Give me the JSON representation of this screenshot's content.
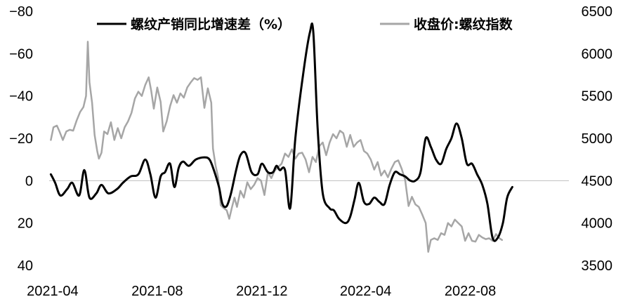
{
  "chart_data": {
    "type": "line",
    "title": "",
    "xlabel": "",
    "grid": false,
    "legend_position": "top",
    "x_tick_labels": [
      "2021-04",
      "2021-08",
      "2021-12",
      "2022-04",
      "2022-08"
    ],
    "x_range": [
      "2021-03-28",
      "2022-11-24"
    ],
    "y_left": {
      "label": "",
      "reversed": true,
      "ylim": [
        -80,
        40
      ],
      "ticks": [
        -80,
        -60,
        -40,
        -20,
        0,
        20,
        40
      ],
      "tick_labels": [
        "−80",
        "−60",
        "−40",
        "−20",
        "0",
        "20",
        "40"
      ]
    },
    "y_right": {
      "label": "",
      "ylim": [
        3500,
        6500
      ],
      "ticks": [
        3500,
        4000,
        4500,
        5000,
        5500,
        6000,
        6500
      ],
      "tick_labels": [
        "3500",
        "4000",
        "4500",
        "5000",
        "5500",
        "6000",
        "6500"
      ]
    },
    "series": [
      {
        "name": "螺纹产销同比增速差（%）",
        "axis": "left",
        "color": "#000000",
        "points": [
          [
            "2021-03-30",
            -3
          ],
          [
            "2021-04-04",
            1
          ],
          [
            "2021-04-10",
            7
          ],
          [
            "2021-04-18",
            4
          ],
          [
            "2021-04-24",
            1
          ],
          [
            "2021-05-02",
            7
          ],
          [
            "2021-05-08",
            -5
          ],
          [
            "2021-05-14",
            8
          ],
          [
            "2021-05-22",
            6
          ],
          [
            "2021-05-28",
            2
          ],
          [
            "2021-06-05",
            6
          ],
          [
            "2021-06-15",
            4
          ],
          [
            "2021-06-22",
            1
          ],
          [
            "2021-07-01",
            -2
          ],
          [
            "2021-07-10",
            -3
          ],
          [
            "2021-07-18",
            -10
          ],
          [
            "2021-07-24",
            -3
          ],
          [
            "2021-07-30",
            8
          ],
          [
            "2021-08-05",
            -2
          ],
          [
            "2021-08-10",
            -4
          ],
          [
            "2021-08-16",
            -8
          ],
          [
            "2021-08-21",
            3
          ],
          [
            "2021-08-26",
            -6
          ],
          [
            "2021-08-31",
            -9
          ],
          [
            "2021-09-07",
            -7
          ],
          [
            "2021-09-15",
            -10
          ],
          [
            "2021-09-25",
            -11
          ],
          [
            "2021-10-01",
            -10
          ],
          [
            "2021-10-06",
            -5
          ],
          [
            "2021-10-12",
            3
          ],
          [
            "2021-10-16",
            11
          ],
          [
            "2021-10-21",
            12
          ],
          [
            "2021-10-26",
            6
          ],
          [
            "2021-11-01",
            -5
          ],
          [
            "2021-11-06",
            -12
          ],
          [
            "2021-11-12",
            -13
          ],
          [
            "2021-11-19",
            -4
          ],
          [
            "2021-11-26",
            -3
          ],
          [
            "2021-12-01",
            -8
          ],
          [
            "2021-12-08",
            -4
          ],
          [
            "2021-12-14",
            -4
          ],
          [
            "2021-12-18",
            -7
          ],
          [
            "2021-12-22",
            -5
          ],
          [
            "2021-12-28",
            -5
          ],
          [
            "2022-01-03",
            13
          ],
          [
            "2022-01-09",
            -20
          ],
          [
            "2022-01-18",
            -50
          ],
          [
            "2022-01-26",
            -70
          ],
          [
            "2022-01-30",
            -70
          ],
          [
            "2022-02-04",
            -25
          ],
          [
            "2022-02-10",
            6
          ],
          [
            "2022-02-18",
            13
          ],
          [
            "2022-02-23",
            14
          ],
          [
            "2022-03-01",
            18
          ],
          [
            "2022-03-09",
            20
          ],
          [
            "2022-03-14",
            17
          ],
          [
            "2022-03-19",
            9
          ],
          [
            "2022-03-24",
            1
          ],
          [
            "2022-03-30",
            10
          ],
          [
            "2022-04-05",
            11
          ],
          [
            "2022-04-11",
            8
          ],
          [
            "2022-04-17",
            10
          ],
          [
            "2022-04-23",
            11
          ],
          [
            "2022-04-29",
            2
          ],
          [
            "2022-05-05",
            -4
          ],
          [
            "2022-05-11",
            -3
          ],
          [
            "2022-05-17",
            -2
          ],
          [
            "2022-05-23",
            0
          ],
          [
            "2022-05-29",
            0
          ],
          [
            "2022-06-04",
            -4
          ],
          [
            "2022-06-10",
            -20
          ],
          [
            "2022-06-16",
            -16
          ],
          [
            "2022-06-22",
            -10
          ],
          [
            "2022-06-28",
            -8
          ],
          [
            "2022-07-04",
            -15
          ],
          [
            "2022-07-10",
            -20
          ],
          [
            "2022-07-16",
            -27
          ],
          [
            "2022-07-22",
            -20
          ],
          [
            "2022-07-28",
            -8
          ],
          [
            "2022-08-03",
            -8
          ],
          [
            "2022-08-09",
            -3
          ],
          [
            "2022-08-15",
            2
          ],
          [
            "2022-08-21",
            11
          ],
          [
            "2022-08-27",
            27
          ],
          [
            "2022-09-02",
            27
          ],
          [
            "2022-09-08",
            20
          ],
          [
            "2022-09-13",
            8
          ],
          [
            "2022-09-19",
            3
          ]
        ]
      },
      {
        "name": "收盘价:螺纹指数",
        "axis": "right",
        "color": "#a6a6a6",
        "points": [
          [
            "2021-03-30",
            4980
          ],
          [
            "2021-04-02",
            5130
          ],
          [
            "2021-04-06",
            5150
          ],
          [
            "2021-04-09",
            5080
          ],
          [
            "2021-04-13",
            4980
          ],
          [
            "2021-04-17",
            5080
          ],
          [
            "2021-04-21",
            5100
          ],
          [
            "2021-04-25",
            5090
          ],
          [
            "2021-04-29",
            5210
          ],
          [
            "2021-05-03",
            5310
          ],
          [
            "2021-05-07",
            5370
          ],
          [
            "2021-05-10",
            5500
          ],
          [
            "2021-05-12",
            6140
          ],
          [
            "2021-05-14",
            5660
          ],
          [
            "2021-05-17",
            5420
          ],
          [
            "2021-05-20",
            5040
          ],
          [
            "2021-05-23",
            4850
          ],
          [
            "2021-05-25",
            4760
          ],
          [
            "2021-05-28",
            4830
          ],
          [
            "2021-05-31",
            5080
          ],
          [
            "2021-06-04",
            5050
          ],
          [
            "2021-06-08",
            5190
          ],
          [
            "2021-06-12",
            4980
          ],
          [
            "2021-06-16",
            5120
          ],
          [
            "2021-06-20",
            5000
          ],
          [
            "2021-06-24",
            5130
          ],
          [
            "2021-06-28",
            5200
          ],
          [
            "2021-07-02",
            5300
          ],
          [
            "2021-07-06",
            5470
          ],
          [
            "2021-07-10",
            5550
          ],
          [
            "2021-07-14",
            5500
          ],
          [
            "2021-07-18",
            5630
          ],
          [
            "2021-07-22",
            5720
          ],
          [
            "2021-07-25",
            5560
          ],
          [
            "2021-07-28",
            5350
          ],
          [
            "2021-08-01",
            5600
          ],
          [
            "2021-08-05",
            5430
          ],
          [
            "2021-08-08",
            5080
          ],
          [
            "2021-08-12",
            5200
          ],
          [
            "2021-08-16",
            5380
          ],
          [
            "2021-08-20",
            5510
          ],
          [
            "2021-08-24",
            5420
          ],
          [
            "2021-08-28",
            5530
          ],
          [
            "2021-09-01",
            5480
          ],
          [
            "2021-09-05",
            5600
          ],
          [
            "2021-09-09",
            5660
          ],
          [
            "2021-09-13",
            5710
          ],
          [
            "2021-09-17",
            5690
          ],
          [
            "2021-09-21",
            5720
          ],
          [
            "2021-09-25",
            5360
          ],
          [
            "2021-09-29",
            5590
          ],
          [
            "2021-10-03",
            5420
          ],
          [
            "2021-10-05",
            4880
          ],
          [
            "2021-10-08",
            4680
          ],
          [
            "2021-10-11",
            4540
          ],
          [
            "2021-10-14",
            4210
          ],
          [
            "2021-10-17",
            4180
          ],
          [
            "2021-10-21",
            4150
          ],
          [
            "2021-10-24",
            4050
          ],
          [
            "2021-10-27",
            4180
          ],
          [
            "2021-10-30",
            4300
          ],
          [
            "2021-11-02",
            4190
          ],
          [
            "2021-11-06",
            4380
          ],
          [
            "2021-11-10",
            4300
          ],
          [
            "2021-11-14",
            4480
          ],
          [
            "2021-11-18",
            4400
          ],
          [
            "2021-11-22",
            4450
          ],
          [
            "2021-11-26",
            4530
          ],
          [
            "2021-11-30",
            4500
          ],
          [
            "2021-12-04",
            4330
          ],
          [
            "2021-12-08",
            4600
          ],
          [
            "2021-12-12",
            4530
          ],
          [
            "2021-12-16",
            4620
          ],
          [
            "2021-12-20",
            4660
          ],
          [
            "2021-12-24",
            4700
          ],
          [
            "2021-12-28",
            4820
          ],
          [
            "2022-01-01",
            4780
          ],
          [
            "2022-01-05",
            4870
          ],
          [
            "2022-01-09",
            4760
          ],
          [
            "2022-01-13",
            4820
          ],
          [
            "2022-01-17",
            4830
          ],
          [
            "2022-01-21",
            4750
          ],
          [
            "2022-01-25",
            4600
          ],
          [
            "2022-01-29",
            4780
          ],
          [
            "2022-02-02",
            4720
          ],
          [
            "2022-02-06",
            4910
          ],
          [
            "2022-02-10",
            4950
          ],
          [
            "2022-02-14",
            4800
          ],
          [
            "2022-02-18",
            4950
          ],
          [
            "2022-02-22",
            5050
          ],
          [
            "2022-02-26",
            5000
          ],
          [
            "2022-03-02",
            5090
          ],
          [
            "2022-03-06",
            5060
          ],
          [
            "2022-03-10",
            4900
          ],
          [
            "2022-03-14",
            5040
          ],
          [
            "2022-03-18",
            4900
          ],
          [
            "2022-03-22",
            4950
          ],
          [
            "2022-03-26",
            4980
          ],
          [
            "2022-03-30",
            4850
          ],
          [
            "2022-04-03",
            4820
          ],
          [
            "2022-04-07",
            4750
          ],
          [
            "2022-04-11",
            4630
          ],
          [
            "2022-04-15",
            4720
          ],
          [
            "2022-04-19",
            4560
          ],
          [
            "2022-04-23",
            4620
          ],
          [
            "2022-04-27",
            4540
          ],
          [
            "2022-05-01",
            4640
          ],
          [
            "2022-05-05",
            4720
          ],
          [
            "2022-05-09",
            4740
          ],
          [
            "2022-05-13",
            4640
          ],
          [
            "2022-05-17",
            4510
          ],
          [
            "2022-05-21",
            4200
          ],
          [
            "2022-05-25",
            4310
          ],
          [
            "2022-05-29",
            4220
          ],
          [
            "2022-06-02",
            4190
          ],
          [
            "2022-06-06",
            4100
          ],
          [
            "2022-06-10",
            4000
          ],
          [
            "2022-06-13",
            3660
          ],
          [
            "2022-06-16",
            3800
          ],
          [
            "2022-06-20",
            3820
          ],
          [
            "2022-06-24",
            3800
          ],
          [
            "2022-06-28",
            3880
          ],
          [
            "2022-07-02",
            3860
          ],
          [
            "2022-07-06",
            4000
          ],
          [
            "2022-07-10",
            3960
          ],
          [
            "2022-07-14",
            4040
          ],
          [
            "2022-07-18",
            4000
          ],
          [
            "2022-07-22",
            3960
          ],
          [
            "2022-07-26",
            3790
          ],
          [
            "2022-07-30",
            3880
          ],
          [
            "2022-08-03",
            3790
          ],
          [
            "2022-08-07",
            3780
          ],
          [
            "2022-08-11",
            3860
          ],
          [
            "2022-08-15",
            3830
          ],
          [
            "2022-08-19",
            3810
          ],
          [
            "2022-08-23",
            3820
          ],
          [
            "2022-08-27",
            3790
          ],
          [
            "2022-08-31",
            3870
          ],
          [
            "2022-09-04",
            3820
          ],
          [
            "2022-09-07",
            3800
          ]
        ]
      }
    ]
  }
}
